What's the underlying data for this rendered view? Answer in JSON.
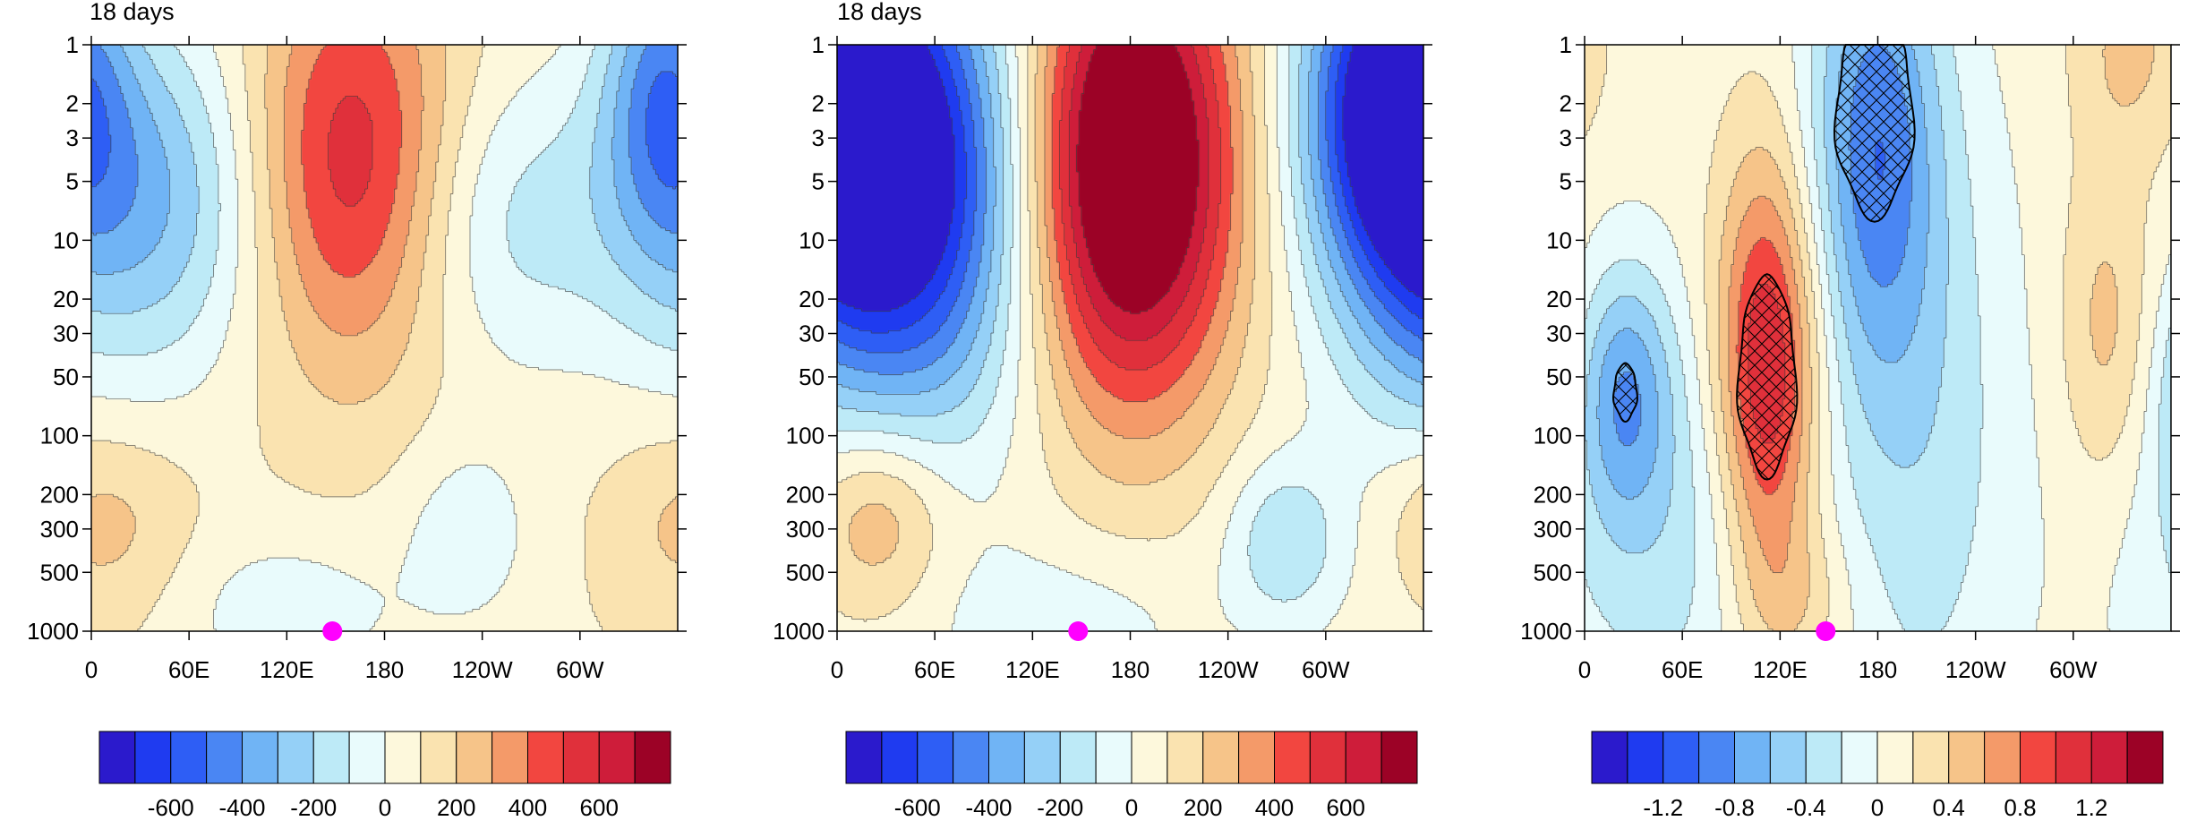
{
  "chart_data": [
    {
      "type": "heatmap",
      "title": "18 days",
      "x_tick_labels": [
        "0",
        "60E",
        "120E",
        "180",
        "120W",
        "60W"
      ],
      "x_tick_lon": [
        0,
        60,
        120,
        180,
        240,
        300
      ],
      "xlim": [
        0,
        360
      ],
      "y_tick_labels": [
        "1",
        "2",
        "3",
        "5",
        "10",
        "20",
        "30",
        "50",
        "100",
        "200",
        "300",
        "500",
        "1000"
      ],
      "y_tick_values": [
        1,
        2,
        3,
        5,
        10,
        20,
        30,
        50,
        100,
        200,
        300,
        500,
        1000
      ],
      "ylim": [
        1,
        1000
      ],
      "y_scale": "log",
      "y_reversed": true,
      "colorbar_labels": [
        "-600",
        "-400",
        "-200",
        "0",
        "200",
        "400",
        "600"
      ],
      "contour_levels": [
        -700,
        -600,
        -500,
        -400,
        -300,
        -200,
        -100,
        0,
        100,
        200,
        300,
        400,
        500,
        600,
        700
      ],
      "marker": {
        "lon": 148,
        "pressure": 1000,
        "color": "#ff00ff"
      },
      "field": {
        "bias": 90,
        "features": [
          {
            "lon": 160,
            "p": 4,
            "amp": 500,
            "sx": 45,
            "sy": 0.75
          },
          {
            "lon": 30,
            "p": 6,
            "amp": -420,
            "sx": 55,
            "sy": 0.65
          },
          {
            "lon": 250,
            "p": 8,
            "amp": -220,
            "sx": 50,
            "sy": 0.55
          },
          {
            "lon": 350,
            "p": 1.5,
            "amp": -380,
            "sx": 25,
            "sy": 0.55
          },
          {
            "lon": 230,
            "p": 320,
            "amp": -150,
            "sx": 30,
            "sy": 0.35
          },
          {
            "lon": 10,
            "p": 280,
            "amp": 150,
            "sx": 35,
            "sy": 0.35
          },
          {
            "lon": 120,
            "p": 800,
            "amp": -150,
            "sx": 50,
            "sy": 0.3
          }
        ]
      }
    },
    {
      "type": "heatmap",
      "title": "18 days",
      "x_tick_labels": [
        "0",
        "60E",
        "120E",
        "180",
        "120W",
        "60W"
      ],
      "x_tick_lon": [
        0,
        60,
        120,
        180,
        240,
        300
      ],
      "xlim": [
        0,
        360
      ],
      "y_tick_labels": [
        "1",
        "2",
        "3",
        "5",
        "10",
        "20",
        "30",
        "50",
        "100",
        "200",
        "300",
        "500",
        "1000"
      ],
      "y_tick_values": [
        1,
        2,
        3,
        5,
        10,
        20,
        30,
        50,
        100,
        200,
        300,
        500,
        1000
      ],
      "ylim": [
        1,
        1000
      ],
      "y_scale": "log",
      "y_reversed": true,
      "colorbar_labels": [
        "-600",
        "-400",
        "-200",
        "0",
        "200",
        "400",
        "600"
      ],
      "contour_levels": [
        -700,
        -600,
        -500,
        -400,
        -300,
        -200,
        -100,
        0,
        100,
        200,
        300,
        400,
        500,
        600,
        700
      ],
      "marker": {
        "lon": 148,
        "pressure": 1000,
        "color": "#ff00ff"
      },
      "field": {
        "bias": 60,
        "features": [
          {
            "lon": 180,
            "p": 4,
            "amp": 1000,
            "sx": 45,
            "sy": 0.85
          },
          {
            "lon": 40,
            "p": 5,
            "amp": -900,
            "sx": 55,
            "sy": 0.85
          },
          {
            "lon": 345,
            "p": 2,
            "amp": -800,
            "sx": 40,
            "sy": 0.65
          },
          {
            "lon": 25,
            "p": 250,
            "amp": 280,
            "sx": 30,
            "sy": 0.35
          },
          {
            "lon": 275,
            "p": 350,
            "amp": -250,
            "sx": 25,
            "sy": 0.3
          },
          {
            "lon": 140,
            "p": 900,
            "amp": -120,
            "sx": 60,
            "sy": 0.3
          }
        ]
      }
    },
    {
      "type": "heatmap",
      "title": "",
      "x_tick_labels": [
        "0",
        "60E",
        "120E",
        "180",
        "120W",
        "60W"
      ],
      "x_tick_lon": [
        0,
        60,
        120,
        180,
        240,
        300
      ],
      "xlim": [
        0,
        360
      ],
      "y_tick_labels": [
        "1",
        "2",
        "3",
        "5",
        "10",
        "20",
        "30",
        "50",
        "100",
        "200",
        "300",
        "500",
        "1000"
      ],
      "y_tick_values": [
        1,
        2,
        3,
        5,
        10,
        20,
        30,
        50,
        100,
        200,
        300,
        500,
        1000
      ],
      "ylim": [
        1,
        1000
      ],
      "y_scale": "log",
      "y_reversed": true,
      "colorbar_labels": [
        "-1.2",
        "-0.8",
        "-0.4",
        "0",
        "0.4",
        "0.8",
        "1.2"
      ],
      "contour_levels": [
        -1.4,
        -1.2,
        -1.0,
        -0.8,
        -0.6,
        -0.4,
        -0.2,
        0,
        0.2,
        0.4,
        0.6,
        0.8,
        1.0,
        1.2,
        1.4
      ],
      "marker": {
        "lon": 148,
        "pressure": 1000,
        "color": "#ff00ff"
      },
      "field": {
        "bias": 0.1,
        "features": [
          {
            "lon": 112,
            "p": 50,
            "amp": 1.25,
            "sx": 22,
            "sy": 0.75
          },
          {
            "lon": 178,
            "p": 3,
            "amp": -0.95,
            "sx": 28,
            "sy": 0.85
          },
          {
            "lon": 25,
            "p": 60,
            "amp": -0.7,
            "sx": 20,
            "sy": 0.45
          },
          {
            "lon": 50,
            "p": 300,
            "amp": -0.4,
            "sx": 60,
            "sy": 0.8
          },
          {
            "lon": 210,
            "p": 100,
            "amp": -0.4,
            "sx": 40,
            "sy": 1.3
          },
          {
            "lon": 320,
            "p": 30,
            "amp": 0.4,
            "sx": 20,
            "sy": 0.6
          },
          {
            "lon": 130,
            "p": 700,
            "amp": 0.3,
            "sx": 25,
            "sy": 0.3
          },
          {
            "lon": 335,
            "p": 1,
            "amp": 0.35,
            "sx": 25,
            "sy": 0.4
          }
        ]
      },
      "hatched_regions": [
        {
          "lon": 112,
          "p": 50,
          "sx": 15,
          "sy": 0.42
        },
        {
          "lon": 178,
          "p": 2.2,
          "sx": 20,
          "sy": 0.45
        },
        {
          "lon": 25,
          "p": 60,
          "sx": 6,
          "sy": 0.12
        }
      ]
    }
  ],
  "colormap": [
    "#2b1acc",
    "#1f3bf0",
    "#2e5ef5",
    "#4a86f3",
    "#70b4f5",
    "#95d0f7",
    "#bdeaf7",
    "#e9fbfc",
    "#fdf8dc",
    "#fae3b0",
    "#f6c489",
    "#f49a69",
    "#f24640",
    "#e0303b",
    "#ce1d3a",
    "#9c0226"
  ]
}
